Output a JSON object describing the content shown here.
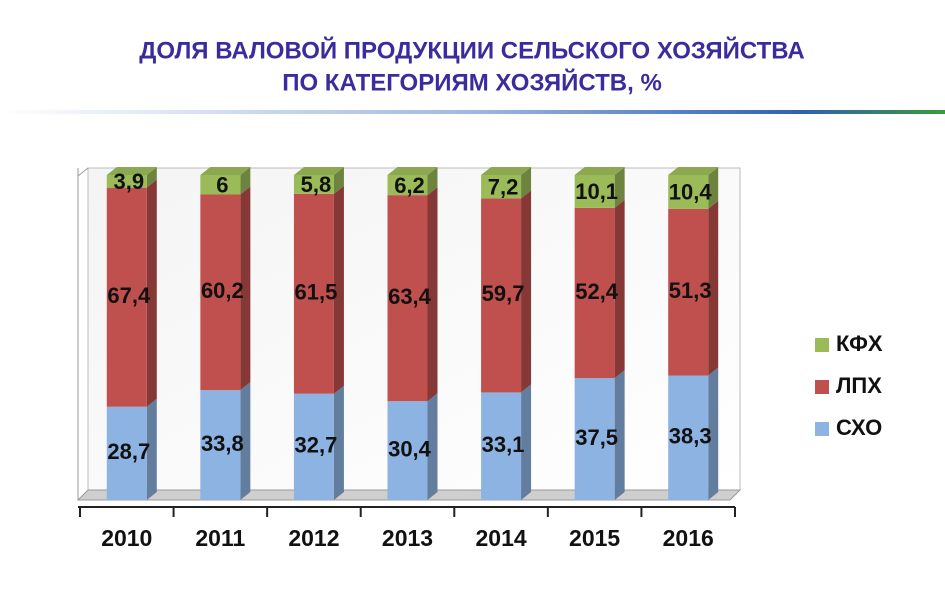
{
  "chart_data": {
    "type": "stacked_bar",
    "title": [
      "ДОЛЯ ВАЛОВОЙ ПРОДУКЦИИ СЕЛЬСКОГО ХОЗЯЙСТВА",
      "ПО КАТЕГОРИЯМ ХОЗЯЙСТВ, %"
    ],
    "categories": [
      "2010",
      "2011",
      "2012",
      "2013",
      "2014",
      "2015",
      "2016"
    ],
    "series": [
      {
        "name": "СХО",
        "color": "#8db3e2",
        "values": [
          28.7,
          33.8,
          32.7,
          30.4,
          33.1,
          37.5,
          38.3
        ],
        "value_labels": [
          "28,7",
          "33,8",
          "32,7",
          "30,4",
          "33,1",
          "37,5",
          "38,3"
        ]
      },
      {
        "name": "ЛПХ",
        "color": "#c0504d",
        "values": [
          67.4,
          60.2,
          61.5,
          63.4,
          59.7,
          52.4,
          51.3
        ],
        "value_labels": [
          "67,4",
          "60,2",
          "61,5",
          "63,4",
          "59,7",
          "52,4",
          "51,3"
        ]
      },
      {
        "name": "КФХ",
        "color": "#9bbb59",
        "values": [
          3.9,
          6,
          5.8,
          6.2,
          7.2,
          10.1,
          10.4
        ],
        "value_labels": [
          "3,9",
          "6",
          "5,8",
          "6,2",
          "7,2",
          "10,1",
          "10,4"
        ]
      }
    ],
    "ylim": [
      0,
      100
    ],
    "legend": "right"
  }
}
